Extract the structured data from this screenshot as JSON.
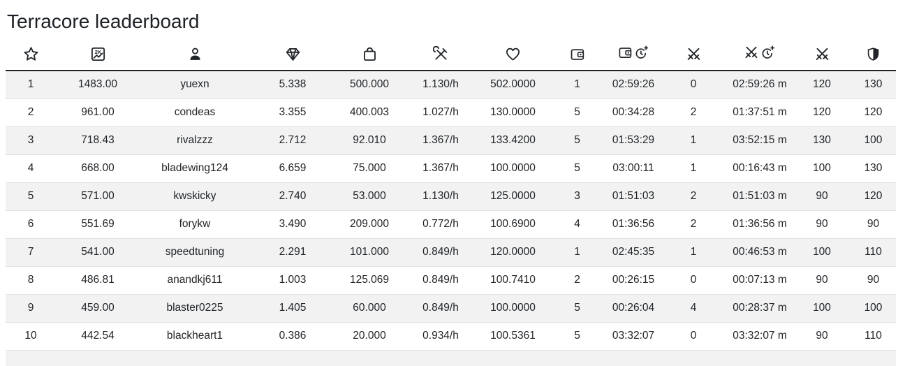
{
  "page": {
    "title": "Terracore leaderboard"
  },
  "colors": {
    "text": "#212529",
    "background": "#ffffff",
    "row_stripe": "#f2f2f2",
    "row_border": "#dee2e6",
    "header_border": "#1f2328"
  },
  "table": {
    "columns": [
      {
        "icon": "star-icon"
      },
      {
        "icon": "score-2k-chart-icon"
      },
      {
        "icon": "person-icon"
      },
      {
        "icon": "gem-icon"
      },
      {
        "icon": "bag-icon"
      },
      {
        "icon": "tools-icon"
      },
      {
        "icon": "heart-icon"
      },
      {
        "icon": "wallet-icon"
      },
      {
        "icon": "wallet-clock-plus-icon"
      },
      {
        "icon": "crossed-swords-icon"
      },
      {
        "icon": "crossed-swords-clock-plus-icon"
      },
      {
        "icon": "crossed-swords-icon"
      },
      {
        "icon": "shield-icon"
      }
    ],
    "rows": [
      [
        "1",
        "1483.00",
        "yuexn",
        "5.338",
        "500.000",
        "1.130/h",
        "502.0000",
        "1",
        "02:59:26",
        "0",
        "02:59:26 m",
        "120",
        "130"
      ],
      [
        "2",
        "961.00",
        "condeas",
        "3.355",
        "400.003",
        "1.027/h",
        "130.0000",
        "5",
        "00:34:28",
        "2",
        "01:37:51 m",
        "120",
        "120"
      ],
      [
        "3",
        "718.43",
        "rivalzzz",
        "2.712",
        "92.010",
        "1.367/h",
        "133.4200",
        "5",
        "01:53:29",
        "1",
        "03:52:15 m",
        "130",
        "100"
      ],
      [
        "4",
        "668.00",
        "bladewing124",
        "6.659",
        "75.000",
        "1.367/h",
        "100.0000",
        "5",
        "03:00:11",
        "1",
        "00:16:43 m",
        "100",
        "130"
      ],
      [
        "5",
        "571.00",
        "kwskicky",
        "2.740",
        "53.000",
        "1.130/h",
        "125.0000",
        "3",
        "01:51:03",
        "2",
        "01:51:03 m",
        "90",
        "120"
      ],
      [
        "6",
        "551.69",
        "forykw",
        "3.490",
        "209.000",
        "0.772/h",
        "100.6900",
        "4",
        "01:36:56",
        "2",
        "01:36:56 m",
        "90",
        "90"
      ],
      [
        "7",
        "541.00",
        "speedtuning",
        "2.291",
        "101.000",
        "0.849/h",
        "120.0000",
        "1",
        "02:45:35",
        "1",
        "00:46:53 m",
        "100",
        "110"
      ],
      [
        "8",
        "486.81",
        "anandkj611",
        "1.003",
        "125.069",
        "0.849/h",
        "100.7410",
        "2",
        "00:26:15",
        "0",
        "00:07:13 m",
        "90",
        "90"
      ],
      [
        "9",
        "459.00",
        "blaster0225",
        "1.405",
        "60.000",
        "0.849/h",
        "100.0000",
        "5",
        "00:26:04",
        "4",
        "00:28:37 m",
        "100",
        "100"
      ],
      [
        "10",
        "442.54",
        "blackheart1",
        "0.386",
        "20.000",
        "0.934/h",
        "100.5361",
        "5",
        "03:32:07",
        "0",
        "03:32:07 m",
        "90",
        "110"
      ]
    ]
  }
}
